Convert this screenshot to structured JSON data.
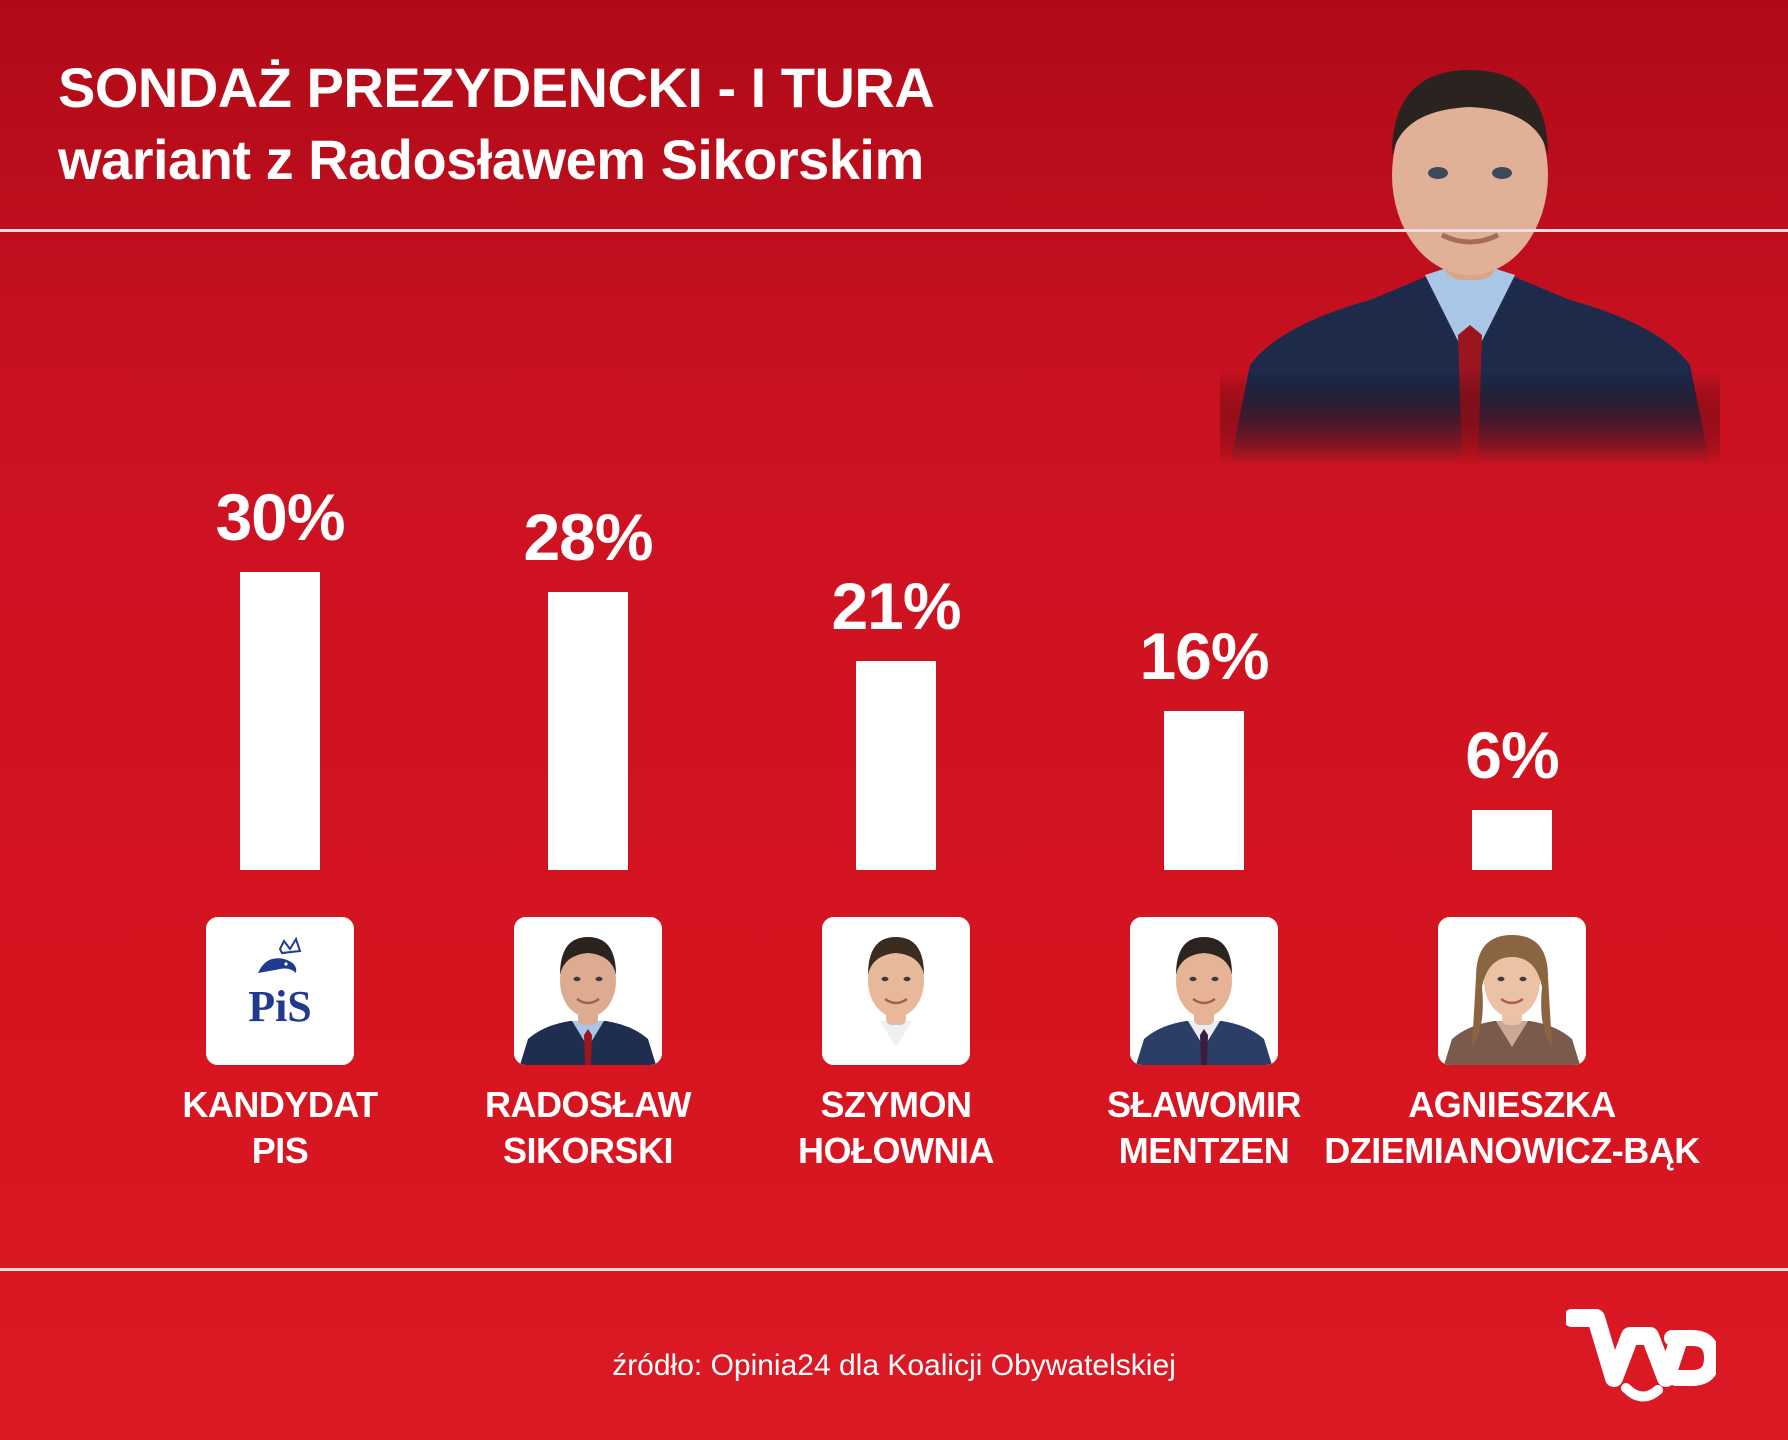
{
  "header": {
    "title_line1": "SONDAŻ PREZYDENCKI - I TURA",
    "title_line2": "wariant z Radosławem Sikorskim"
  },
  "colors": {
    "background": "#d01520",
    "bar": "#ffffff",
    "text": "#ffffff"
  },
  "chart_data": {
    "type": "bar",
    "categories": [
      "KANDYDAT PIS",
      "RADOSŁAW SIKORSKI",
      "SZYMON HOŁOWNIA",
      "SŁAWOMIR MENTZEN",
      "AGNIESZKA DZIEMIANOWICZ-BĄK"
    ],
    "values": [
      30,
      28,
      21,
      16,
      6
    ],
    "value_labels": [
      "30%",
      "28%",
      "21%",
      "16%",
      "6%"
    ],
    "ylim": [
      0,
      30
    ],
    "grid": false
  },
  "candidates": [
    {
      "line1": "KANDYDAT",
      "line2": "PIS",
      "icon": "pis-logo-icon",
      "logo_text": "PiS"
    },
    {
      "line1": "RADOSŁAW",
      "line2": "SIKORSKI",
      "icon": "portrait-sikorski"
    },
    {
      "line1": "SZYMON",
      "line2": "HOŁOWNIA",
      "icon": "portrait-holownia"
    },
    {
      "line1": "SŁAWOMIR",
      "line2": "MENTZEN",
      "icon": "portrait-mentzen"
    },
    {
      "line1": "AGNIESZKA",
      "line2": "DZIEMIANOWICZ-BĄK",
      "icon": "portrait-dziemianowicz-bak"
    }
  ],
  "footer": {
    "source": "źródło: Opinia24 dla Koalicji Obywatelskiej",
    "logo_icon": "wp-logo-icon"
  }
}
